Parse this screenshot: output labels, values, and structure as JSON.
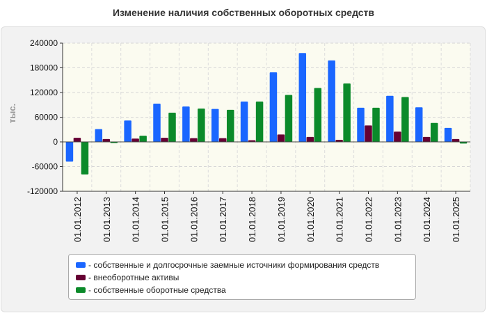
{
  "chart_data": {
    "type": "bar",
    "title": "Изменение наличия собственных оборотных средств",
    "ylabel": "тыс.",
    "xlabel": "",
    "ylim": [
      -120000,
      240000
    ],
    "yticks": [
      240000,
      180000,
      120000,
      60000,
      0,
      -60000,
      -120000
    ],
    "ytick_labels": [
      "240000",
      "180000",
      "120000",
      "60000",
      "0",
      "-60000",
      "-120000"
    ],
    "grid": true,
    "legend_position": "bottom",
    "categories": [
      "01.01.2012",
      "01.01.2013",
      "01.01.2014",
      "01.01.2015",
      "01.01.2016",
      "01.01.2017",
      "01.01.2018",
      "01.01.2019",
      "01.01.2020",
      "01.01.2021",
      "01.01.2022",
      "01.01.2023",
      "01.01.2024",
      "01.01.2025"
    ],
    "series": [
      {
        "name": "- собственные и долгосрочные заемные источники формирования средств",
        "color": "#1a66ff",
        "values": [
          -48000,
          31000,
          52000,
          93000,
          86000,
          80000,
          98000,
          169000,
          216000,
          198000,
          83000,
          112000,
          84000,
          34000
        ]
      },
      {
        "name": "- внеоборотные активы",
        "color": "#660033",
        "values": [
          10000,
          7000,
          8000,
          10000,
          9000,
          9000,
          4000,
          18000,
          12000,
          5000,
          40000,
          25000,
          12000,
          7000
        ]
      },
      {
        "name": "- собственные оборотные средства",
        "color": "#0b8a2a",
        "values": [
          -79000,
          -3000,
          15000,
          71000,
          81000,
          78000,
          98000,
          114000,
          131000,
          142000,
          83000,
          109000,
          46000,
          -4000
        ]
      }
    ]
  }
}
